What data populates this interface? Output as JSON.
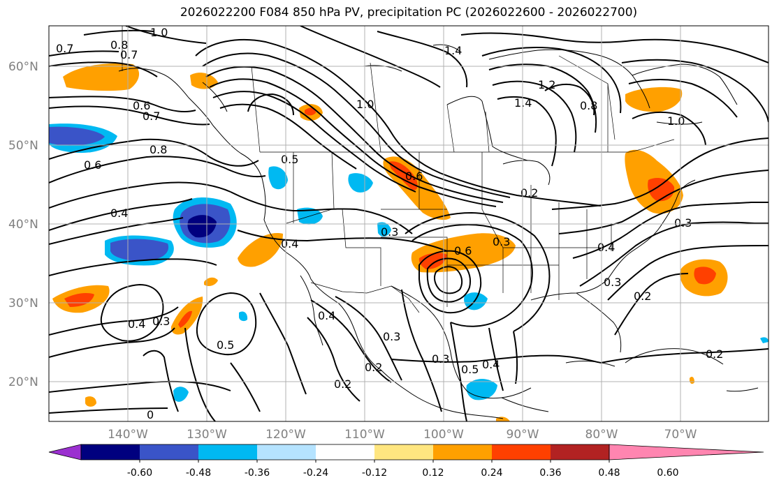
{
  "title": "2026022200 F084 850 hPa PV, precipitation PC (2026022600 - 2026022700)",
  "lat_labels": [
    "60°N",
    "50°N",
    "40°N",
    "30°N",
    "20°N"
  ],
  "lon_labels": [
    "140°W",
    "130°W",
    "120°W",
    "110°W",
    "100°W",
    "90°W",
    "80°W",
    "70°W"
  ],
  "colorbar": {
    "ticks": [
      "-0.60",
      "-0.48",
      "-0.36",
      "-0.24",
      "-0.12",
      "0.12",
      "0.24",
      "0.36",
      "0.48",
      "0.60"
    ],
    "colors": [
      "#9b30d0",
      "#00007f",
      "#3a54c8",
      "#00b9f2",
      "#b5e3ff",
      "#ffffff",
      "#ffe680",
      "#ffa000",
      "#ff4000",
      "#b22222",
      "#ff85b0"
    ]
  },
  "contour_labels": [
    "1.0",
    "0.8",
    "0.7",
    "0.7",
    "1.4",
    "1.2",
    "1.4",
    "0.6",
    "0.7",
    "1.0",
    "0.8",
    "1.0",
    "0.6",
    "0.8",
    "0.5",
    "0.6",
    "0.4",
    "0.3",
    "0.4",
    "0.3",
    "0.3",
    "0.6",
    "0.4",
    "0.3",
    "0.2",
    "0.4",
    "0.3",
    "0.5",
    "0.4",
    "0.3",
    "0.2",
    "0.5",
    "0.4",
    "0.3",
    "0.2",
    "0.2",
    "0.2",
    "0"
  ]
}
